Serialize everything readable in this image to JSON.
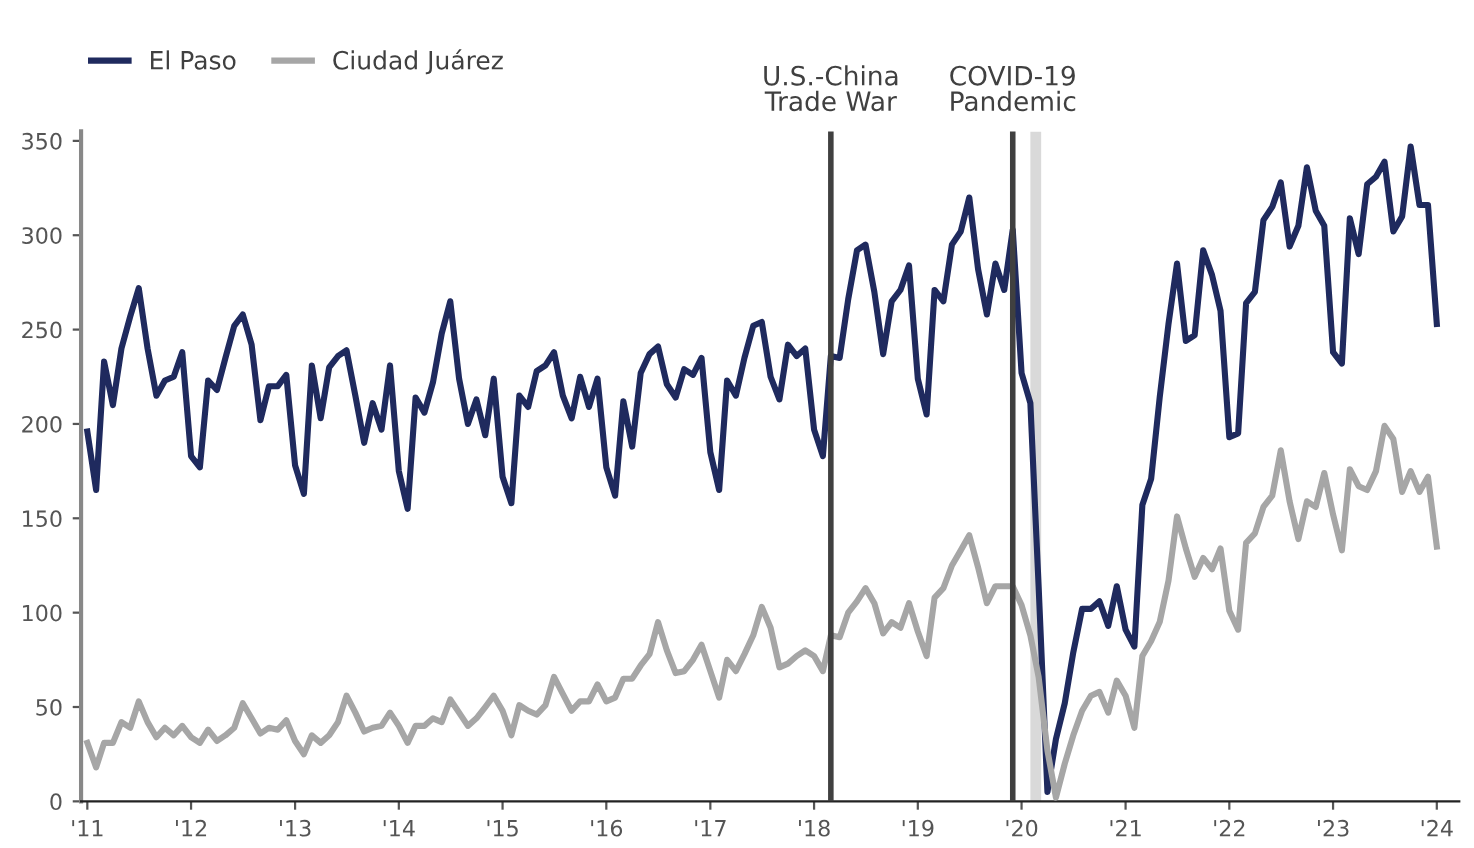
{
  "chart_data": {
    "type": "line",
    "x": [
      "2011-01",
      "2011-02",
      "2011-03",
      "2011-04",
      "2011-05",
      "2011-06",
      "2011-07",
      "2011-08",
      "2011-09",
      "2011-10",
      "2011-11",
      "2011-12",
      "2012-01",
      "2012-02",
      "2012-03",
      "2012-04",
      "2012-05",
      "2012-06",
      "2012-07",
      "2012-08",
      "2012-09",
      "2012-10",
      "2012-11",
      "2012-12",
      "2013-01",
      "2013-02",
      "2013-03",
      "2013-04",
      "2013-05",
      "2013-06",
      "2013-07",
      "2013-08",
      "2013-09",
      "2013-10",
      "2013-11",
      "2013-12",
      "2014-01",
      "2014-02",
      "2014-03",
      "2014-04",
      "2014-05",
      "2014-06",
      "2014-07",
      "2014-08",
      "2014-09",
      "2014-10",
      "2014-11",
      "2014-12",
      "2015-01",
      "2015-02",
      "2015-03",
      "2015-04",
      "2015-05",
      "2015-06",
      "2015-07",
      "2015-08",
      "2015-09",
      "2015-10",
      "2015-11",
      "2015-12",
      "2016-01",
      "2016-02",
      "2016-03",
      "2016-04",
      "2016-05",
      "2016-06",
      "2016-07",
      "2016-08",
      "2016-09",
      "2016-10",
      "2016-11",
      "2016-12",
      "2017-01",
      "2017-02",
      "2017-03",
      "2017-04",
      "2017-05",
      "2017-06",
      "2017-07",
      "2017-08",
      "2017-09",
      "2017-10",
      "2017-11",
      "2017-12",
      "2018-01",
      "2018-02",
      "2018-03",
      "2018-04",
      "2018-05",
      "2018-06",
      "2018-07",
      "2018-08",
      "2018-09",
      "2018-10",
      "2018-11",
      "2018-12",
      "2019-01",
      "2019-02",
      "2019-03",
      "2019-04",
      "2019-05",
      "2019-06",
      "2019-07",
      "2019-08",
      "2019-09",
      "2019-10",
      "2019-11",
      "2019-12",
      "2020-01",
      "2020-02",
      "2020-03",
      "2020-04",
      "2020-05",
      "2020-06",
      "2020-07",
      "2020-08",
      "2020-09",
      "2020-10",
      "2020-11",
      "2020-12",
      "2021-01",
      "2021-02",
      "2021-03",
      "2021-04",
      "2021-05",
      "2021-06",
      "2021-07",
      "2021-08",
      "2021-09",
      "2021-10",
      "2021-11",
      "2021-12",
      "2022-01",
      "2022-02",
      "2022-03",
      "2022-04",
      "2022-05",
      "2022-06",
      "2022-07",
      "2022-08",
      "2022-09",
      "2022-10",
      "2022-11",
      "2022-12",
      "2023-01",
      "2023-02",
      "2023-03",
      "2023-04",
      "2023-05",
      "2023-06",
      "2023-07",
      "2023-08",
      "2023-09",
      "2023-10",
      "2023-11",
      "2023-12",
      "2024-01"
    ],
    "series": [
      {
        "name": "El Paso",
        "color": "#1f2a5e",
        "values": [
          196,
          165,
          233,
          210,
          240,
          257,
          272,
          240,
          215,
          223,
          225,
          238,
          183,
          177,
          223,
          218,
          235,
          252,
          258,
          242,
          202,
          220,
          220,
          226,
          178,
          163,
          231,
          203,
          230,
          236,
          239,
          215,
          190,
          211,
          197,
          231,
          175,
          155,
          214,
          206,
          222,
          248,
          265,
          224,
          200,
          213,
          194,
          224,
          172,
          158,
          215,
          209,
          228,
          231,
          238,
          215,
          203,
          225,
          209,
          224,
          177,
          162,
          212,
          188,
          227,
          237,
          241,
          221,
          214,
          229,
          226,
          235,
          185,
          165,
          223,
          215,
          235,
          252,
          254,
          225,
          213,
          242,
          236,
          240,
          197,
          183,
          236,
          235,
          266,
          292,
          295,
          270,
          237,
          265,
          271,
          284,
          224,
          205,
          271,
          265,
          295,
          302,
          320,
          282,
          258,
          285,
          271,
          303,
          227,
          211,
          114,
          5,
          33,
          52,
          79,
          102,
          102,
          106,
          93,
          114,
          91,
          82,
          157,
          171,
          214,
          253,
          285,
          244,
          247,
          292,
          279,
          260,
          193,
          195,
          264,
          270,
          308,
          315,
          328,
          294,
          305,
          336,
          313,
          305,
          238,
          232,
          309,
          290,
          327,
          331,
          339,
          302,
          310,
          347,
          316,
          316,
          253
        ]
      },
      {
        "name": "Ciudad Juárez",
        "color": "#a6a6a6",
        "values": [
          31,
          18,
          31,
          31,
          42,
          39,
          53,
          42,
          34,
          39,
          35,
          40,
          34,
          31,
          38,
          32,
          35,
          39,
          52,
          44,
          36,
          39,
          38,
          43,
          32,
          25,
          35,
          31,
          35,
          42,
          56,
          47,
          37,
          39,
          40,
          47,
          40,
          31,
          40,
          40,
          44,
          42,
          54,
          47,
          40,
          44,
          50,
          56,
          48,
          35,
          51,
          48,
          46,
          51,
          66,
          57,
          48,
          53,
          53,
          62,
          53,
          55,
          65,
          65,
          72,
          78,
          95,
          80,
          68,
          69,
          75,
          83,
          69,
          55,
          75,
          69,
          78,
          88,
          103,
          92,
          71,
          73,
          77,
          80,
          77,
          69,
          88,
          87,
          100,
          106,
          113,
          105,
          89,
          95,
          92,
          105,
          90,
          77,
          108,
          113,
          125,
          133,
          141,
          124,
          105,
          114,
          114,
          114,
          104,
          88,
          66,
          27,
          2,
          20,
          35,
          48,
          56,
          58,
          47,
          64,
          56,
          39,
          77,
          85,
          95,
          117,
          151,
          134,
          119,
          129,
          123,
          134,
          101,
          91,
          137,
          142,
          156,
          162,
          186,
          159,
          139,
          159,
          156,
          174,
          152,
          133,
          176,
          167,
          165,
          175,
          199,
          192,
          164,
          175,
          164,
          172,
          135
        ]
      }
    ],
    "xlim": [
      "2010-12-10",
      "2024-03-20"
    ],
    "xticks": [
      {
        "value": "2011-01",
        "label": "'11"
      },
      {
        "value": "2012-01",
        "label": "'12"
      },
      {
        "value": "2013-01",
        "label": "'13"
      },
      {
        "value": "2014-01",
        "label": "'14"
      },
      {
        "value": "2015-01",
        "label": "'15"
      },
      {
        "value": "2016-01",
        "label": "'16"
      },
      {
        "value": "2017-01",
        "label": "'17"
      },
      {
        "value": "2018-01",
        "label": "'18"
      },
      {
        "value": "2019-01",
        "label": "'19"
      },
      {
        "value": "2020-01",
        "label": "'20"
      },
      {
        "value": "2021-01",
        "label": "'21"
      },
      {
        "value": "2022-01",
        "label": "'22"
      },
      {
        "value": "2023-01",
        "label": "'23"
      },
      {
        "value": "2024-01",
        "label": "'24"
      }
    ],
    "ylim": [
      0,
      355
    ],
    "yticks": [
      0,
      50,
      100,
      150,
      200,
      250,
      300,
      350
    ],
    "ref_lines": [
      {
        "axis": "x",
        "value": "2018-03",
        "label": "U.S.-China\nTrade War",
        "color": "#404040"
      },
      {
        "axis": "x",
        "value": "2019-12",
        "label": "COVID-19\nPandemic",
        "color": "#404040"
      }
    ],
    "bands": [
      {
        "axis": "x",
        "from": "2020-02-01",
        "to": "2020-03-10",
        "color": "#d9d9d9"
      }
    ],
    "grid": false,
    "legend": "top left",
    "marker": "none",
    "line_style": "solid"
  }
}
